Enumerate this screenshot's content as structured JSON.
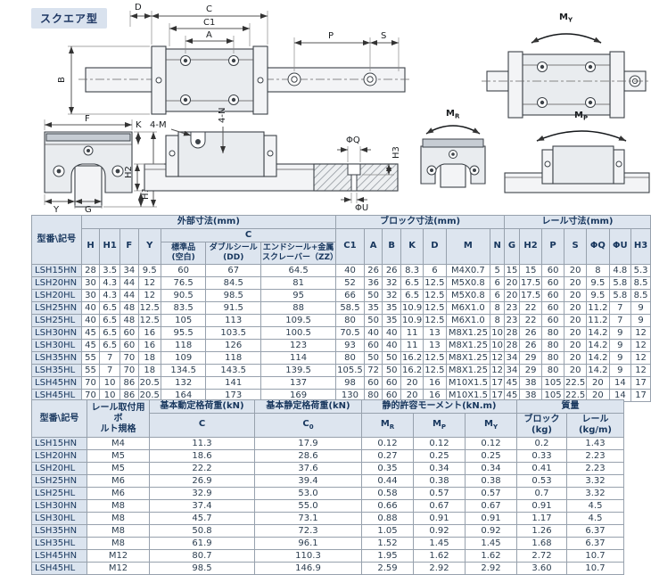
{
  "page": {
    "badge": "スクエア型"
  },
  "drawings": {
    "plan": {
      "D": "D",
      "C": "C",
      "C1": "C1",
      "A": "A",
      "B": "B",
      "P": "P",
      "S": "S"
    },
    "front": {
      "F": "F",
      "K": "K",
      "H": "H",
      "H1": "H1",
      "Y": "Y",
      "G": "G"
    },
    "side": {
      "bolt": "4-M",
      "depth": "4-N",
      "H2": "H2",
      "phiQ": "ΦQ",
      "H3": "H3",
      "phiU": "ΦU"
    },
    "moments": {
      "roll_base": "M",
      "roll_sub": "R",
      "pitch_base": "M",
      "pitch_sub": "P",
      "yaw_base": "M",
      "yaw_sub": "Y"
    }
  },
  "table1": {
    "model_header": "型番\\記号",
    "group_outer": "外部寸法(mm)",
    "group_block": "ブロック寸法(mm)",
    "group_rail": "レール寸法(mm)",
    "c_group": "C",
    "cols": {
      "h": "H",
      "h1": "H1",
      "f": "F",
      "y": "Y",
      "c_std": "標準品\n(空白)",
      "c_dd": "ダブルシール\n(DD)",
      "c_zz": "エンドシール+金属\nスクレーバー（ZZ）",
      "c1": "C1",
      "a": "A",
      "b": "B",
      "k": "K",
      "d": "D",
      "m": "M",
      "n": "N",
      "g": "G",
      "h2": "H2",
      "p": "P",
      "s": "S",
      "phiq": "ΦQ",
      "phiu": "ΦU",
      "h3": "H3"
    },
    "rows": [
      [
        "LSH15HN",
        "28",
        "3.5",
        "34",
        "9.5",
        "60",
        "67",
        "64.5",
        "40",
        "26",
        "26",
        "8.3",
        "6",
        "M4X0.7",
        "5",
        "15",
        "15",
        "60",
        "20",
        "8",
        "4.8",
        "5.3"
      ],
      [
        "LSH20HN",
        "30",
        "4.3",
        "44",
        "12",
        "76.5",
        "84.5",
        "81",
        "52",
        "36",
        "32",
        "6.5",
        "12.5",
        "M5X0.8",
        "6",
        "20",
        "17.5",
        "60",
        "20",
        "9.5",
        "5.8",
        "8.5"
      ],
      [
        "LSH20HL",
        "30",
        "4.3",
        "44",
        "12",
        "90.5",
        "98.5",
        "95",
        "66",
        "50",
        "32",
        "6.5",
        "12.5",
        "M5X0.8",
        "6",
        "20",
        "17.5",
        "60",
        "20",
        "9.5",
        "5.8",
        "8.5"
      ],
      [
        "LSH25HN",
        "40",
        "6.5",
        "48",
        "12.5",
        "83.5",
        "91.5",
        "88",
        "58.5",
        "35",
        "35",
        "10.9",
        "12.5",
        "M6X1.0",
        "8",
        "23",
        "22",
        "60",
        "20",
        "11.2",
        "7",
        "9"
      ],
      [
        "LSH25HL",
        "40",
        "6.5",
        "48",
        "12.5",
        "105",
        "113",
        "109.5",
        "80",
        "50",
        "35",
        "10.9",
        "12.5",
        "M6X1.0",
        "8",
        "23",
        "22",
        "60",
        "20",
        "11.2",
        "7",
        "9"
      ],
      [
        "LSH30HN",
        "45",
        "6.5",
        "60",
        "16",
        "95.5",
        "103.5",
        "100.5",
        "70.5",
        "40",
        "40",
        "11",
        "13",
        "M8X1.25",
        "10",
        "28",
        "26",
        "80",
        "20",
        "14.2",
        "9",
        "12"
      ],
      [
        "LSH30HL",
        "45",
        "6.5",
        "60",
        "16",
        "118",
        "126",
        "123",
        "93",
        "60",
        "40",
        "11",
        "13",
        "M8X1.25",
        "10",
        "28",
        "26",
        "80",
        "20",
        "14.2",
        "9",
        "12"
      ],
      [
        "LSH35HN",
        "55",
        "7",
        "70",
        "18",
        "109",
        "118",
        "114",
        "80",
        "50",
        "50",
        "16.2",
        "12.5",
        "M8X1.25",
        "12",
        "34",
        "29",
        "80",
        "20",
        "14.2",
        "9",
        "12"
      ],
      [
        "LSH35HL",
        "55",
        "7",
        "70",
        "18",
        "134.5",
        "143.5",
        "139.5",
        "105.5",
        "72",
        "50",
        "16.2",
        "12.5",
        "M8X1.25",
        "12",
        "34",
        "29",
        "80",
        "20",
        "14.2",
        "9",
        "12"
      ],
      [
        "LSH45HN",
        "70",
        "10",
        "86",
        "20.5",
        "132",
        "141",
        "137",
        "98",
        "60",
        "60",
        "20",
        "16",
        "M10X1.5",
        "17",
        "45",
        "38",
        "105",
        "22.5",
        "20",
        "14",
        "17"
      ],
      [
        "LSH45HL",
        "70",
        "10",
        "86",
        "20.5",
        "164",
        "173",
        "169",
        "130",
        "80",
        "60",
        "20",
        "16",
        "M10X1.5",
        "17",
        "45",
        "38",
        "105",
        "22.5",
        "20",
        "14",
        "17"
      ]
    ]
  },
  "table2": {
    "model_header": "型番\\記号",
    "bolt_header": "レール取付用ボ\nルト規格",
    "dynamic_header": "基本動定格荷重(kN)",
    "static_header": "基本静定格荷重(kN)",
    "moment_header": "静的許容モーメント(kN.m)",
    "mass_header": "質量",
    "c_dyn": {
      "base": "C",
      "sub": ""
    },
    "c_stat": {
      "base": "C",
      "sub": "0"
    },
    "m_roll": {
      "base": "M",
      "sub": "R"
    },
    "m_pitch": {
      "base": "M",
      "sub": "P"
    },
    "m_yaw": {
      "base": "M",
      "sub": "Y"
    },
    "mass_block": "ブロック\n(kg)",
    "mass_rail": "レール\n(kg/m)",
    "rows": [
      [
        "LSH15HN",
        "M4",
        "11.3",
        "17.9",
        "0.12",
        "0.12",
        "0.12",
        "0.2",
        "1.43"
      ],
      [
        "LSH20HN",
        "M5",
        "18.6",
        "28.6",
        "0.27",
        "0.25",
        "0.25",
        "0.33",
        "2.23"
      ],
      [
        "LSH20HL",
        "M5",
        "22.2",
        "37.6",
        "0.35",
        "0.34",
        "0.34",
        "0.41",
        "2.23"
      ],
      [
        "LSH25HN",
        "M6",
        "26.9",
        "39.4",
        "0.44",
        "0.38",
        "0.38",
        "0.53",
        "3.32"
      ],
      [
        "LSH25HL",
        "M6",
        "32.9",
        "53.0",
        "0.58",
        "0.57",
        "0.57",
        "0.7",
        "3.32"
      ],
      [
        "LSH30HN",
        "M8",
        "37.4",
        "55.0",
        "0.66",
        "0.67",
        "0.67",
        "0.91",
        "4.5"
      ],
      [
        "LSH30HL",
        "M8",
        "45.7",
        "73.1",
        "0.88",
        "0.91",
        "0.91",
        "1.17",
        "4.5"
      ],
      [
        "LSH35HN",
        "M8",
        "50.8",
        "72.3",
        "1.05",
        "0.92",
        "0.92",
        "1.26",
        "6.37"
      ],
      [
        "LSH35HL",
        "M8",
        "61.9",
        "96.1",
        "1.52",
        "1.45",
        "1.45",
        "1.68",
        "6.37"
      ],
      [
        "LSH45HN",
        "M12",
        "80.7",
        "110.3",
        "1.95",
        "1.62",
        "1.62",
        "2.72",
        "10.7"
      ],
      [
        "LSH45HL",
        "M12",
        "98.5",
        "146.9",
        "2.59",
        "2.92",
        "2.92",
        "3.60",
        "10.7"
      ]
    ]
  }
}
